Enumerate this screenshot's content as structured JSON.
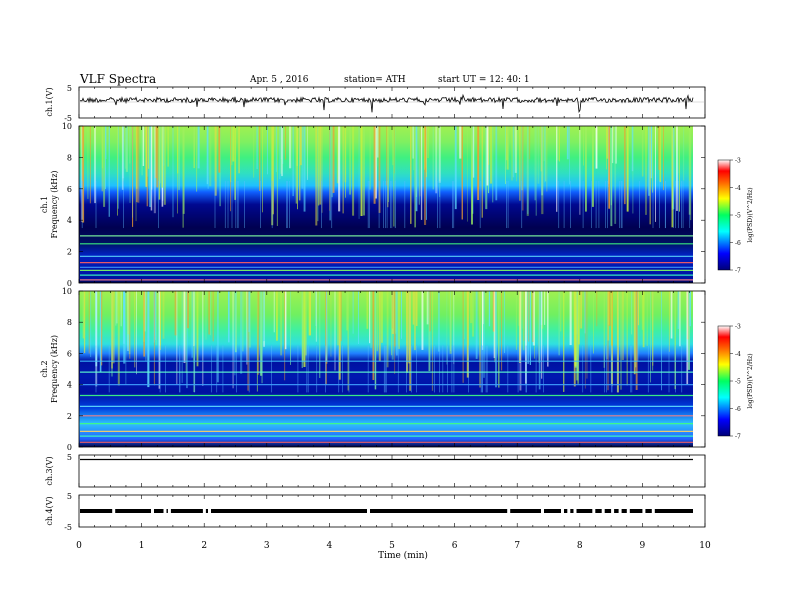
{
  "header": {
    "title": "VLF Spectra",
    "date": "Apr. 5 , 2016",
    "station": "station= ATH",
    "start": "start UT = 12: 40: 1"
  },
  "chart_data": [
    {
      "type": "line",
      "panel": "ch1",
      "ylabel": "ch.1(V)",
      "ylim": [
        -5,
        5
      ],
      "yticks": [
        "5",
        "-5"
      ],
      "series": [
        {
          "values_approx": "noisy waveform around 0 V, amplitude ~1 V with sparse spikes to ~ -4 V"
        }
      ]
    },
    {
      "type": "heatmap",
      "panel": "ch1-spectrogram",
      "ylabel": "ch.1 Frequency (kHz)",
      "ylim": [
        0,
        10
      ],
      "yticks": [
        "0",
        "2",
        "4",
        "6",
        "8",
        "10"
      ],
      "xlim": [
        0,
        10
      ],
      "colorbar": {
        "label": "log(PSD)(V^2/Hz)",
        "range": [
          -7,
          -3
        ],
        "ticks": [
          "-3",
          "-4",
          "-5",
          "-6",
          "-7"
        ]
      },
      "bands_khz": [
        0.2,
        0.5,
        0.8,
        1.0,
        1.3,
        1.7,
        2.5,
        3.0
      ],
      "data_ends_min": 9.8
    },
    {
      "type": "heatmap",
      "panel": "ch2-spectrogram",
      "ylabel": "ch.2 Frequency (kHz)",
      "ylim": [
        0,
        10
      ],
      "yticks": [
        "0",
        "2",
        "4",
        "6",
        "8",
        "10"
      ],
      "xlim": [
        0,
        10
      ],
      "colorbar": {
        "label": "log(PSD)(V^2/Hz)",
        "range": [
          -7,
          -3
        ],
        "ticks": [
          "-3",
          "-4",
          "-5",
          "-6",
          "-7"
        ]
      },
      "bands_khz": [
        0.3,
        0.7,
        1.0,
        1.5,
        2.0,
        2.6,
        3.3,
        4.0,
        4.8,
        5.5
      ],
      "data_ends_min": 9.8
    },
    {
      "type": "line",
      "panel": "ch3",
      "ylabel": "ch.3(V)",
      "ylim": [
        -5,
        5
      ],
      "yticks": [
        "5"
      ],
      "series": [
        {
          "values_approx": "flat around +4.6 V"
        }
      ]
    },
    {
      "type": "line",
      "panel": "ch4",
      "ylabel": "ch.4(V)",
      "ylim": [
        -5,
        5
      ],
      "yticks": [
        "5",
        "-5"
      ],
      "series": [
        {
          "values_approx": "around 0 V with marker dots"
        }
      ]
    }
  ],
  "xaxis": {
    "label": "Time (min)",
    "ticks": [
      "0",
      "1",
      "2",
      "3",
      "4",
      "5",
      "6",
      "7",
      "8",
      "9",
      "10"
    ]
  }
}
